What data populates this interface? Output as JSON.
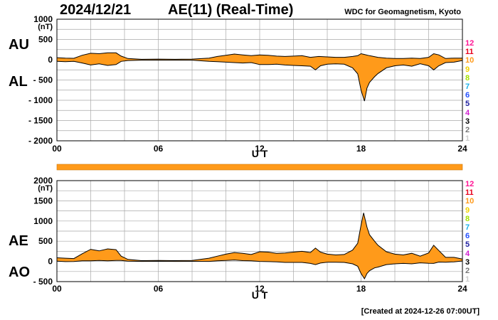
{
  "header": {
    "date": "2024/12/21",
    "index_title": "AE(11) (Real-Time)",
    "source": "WDC for Geomagnetism, Kyoto"
  },
  "footer": {
    "created": "[Created at 2024-12-26 07:00UT]"
  },
  "panels": {
    "top": {
      "label_upper": "AU",
      "label_lower": "AL"
    },
    "bottom": {
      "label_upper": "AE",
      "label_lower": "AO"
    }
  },
  "legend": {
    "items": [
      {
        "label": "12",
        "color": "#ff1493"
      },
      {
        "label": "11",
        "color": "#e8001c"
      },
      {
        "label": "10",
        "color": "#ff9a1a"
      },
      {
        "label": "9",
        "color": "#f2d200"
      },
      {
        "label": "8",
        "color": "#a6e000"
      },
      {
        "label": "7",
        "color": "#1ab0e8"
      },
      {
        "label": "6",
        "color": "#2450ff"
      },
      {
        "label": "5",
        "color": "#2020a0"
      },
      {
        "label": "4",
        "color": "#d020d0"
      },
      {
        "label": "3",
        "color": "#000000"
      },
      {
        "label": "2",
        "color": "#777777"
      },
      {
        "label": "1",
        "color": "#cccccc"
      }
    ]
  },
  "colors": {
    "fill": "#ff9a1a",
    "grid": "#a8a8a8",
    "line": "#000000"
  },
  "chart_data": [
    {
      "type": "area",
      "title": "AE(11) (Real-Time)",
      "xlabel": "U T",
      "ylabel": "(nT)",
      "xlim": [
        0,
        24
      ],
      "ylim": [
        -2000,
        1000
      ],
      "x_ticks": [
        "00",
        "06",
        "12",
        "18",
        "24"
      ],
      "y_ticks": [
        "1000",
        "500",
        "0",
        "- 500",
        "- 1000",
        "- 1500",
        "- 2000"
      ],
      "grid": true,
      "series": [
        {
          "name": "AU",
          "points": [
            [
              0,
              50
            ],
            [
              0.5,
              40
            ],
            [
              1,
              35
            ],
            [
              1.5,
              110
            ],
            [
              2,
              160
            ],
            [
              2.5,
              150
            ],
            [
              3,
              170
            ],
            [
              3.5,
              170
            ],
            [
              3.8,
              90
            ],
            [
              4.2,
              30
            ],
            [
              5,
              10
            ],
            [
              6,
              15
            ],
            [
              7,
              10
            ],
            [
              8,
              15
            ],
            [
              9,
              40
            ],
            [
              9.5,
              80
            ],
            [
              10,
              110
            ],
            [
              10.5,
              140
            ],
            [
              11,
              120
            ],
            [
              11.5,
              100
            ],
            [
              12,
              120
            ],
            [
              12.5,
              110
            ],
            [
              13,
              90
            ],
            [
              13.5,
              80
            ],
            [
              14,
              90
            ],
            [
              14.5,
              100
            ],
            [
              15,
              60
            ],
            [
              15.5,
              80
            ],
            [
              16,
              70
            ],
            [
              16.5,
              60
            ],
            [
              17,
              60
            ],
            [
              17.5,
              80
            ],
            [
              17.8,
              100
            ],
            [
              18,
              150
            ],
            [
              18.2,
              130
            ],
            [
              18.5,
              100
            ],
            [
              19,
              60
            ],
            [
              19.5,
              40
            ],
            [
              20,
              30
            ],
            [
              20.5,
              30
            ],
            [
              21,
              40
            ],
            [
              21.5,
              30
            ],
            [
              22,
              60
            ],
            [
              22.3,
              150
            ],
            [
              22.6,
              120
            ],
            [
              23,
              30
            ],
            [
              23.5,
              40
            ],
            [
              24,
              40
            ]
          ]
        },
        {
          "name": "AL",
          "points": [
            [
              0,
              -40
            ],
            [
              0.5,
              -50
            ],
            [
              1,
              -40
            ],
            [
              1.5,
              -80
            ],
            [
              2,
              -130
            ],
            [
              2.5,
              -100
            ],
            [
              3,
              -140
            ],
            [
              3.5,
              -120
            ],
            [
              3.8,
              -40
            ],
            [
              4.2,
              -20
            ],
            [
              5,
              -10
            ],
            [
              6,
              -10
            ],
            [
              7,
              -10
            ],
            [
              8,
              -10
            ],
            [
              9,
              -40
            ],
            [
              9.5,
              -50
            ],
            [
              10,
              -60
            ],
            [
              10.5,
              -70
            ],
            [
              11,
              -80
            ],
            [
              11.5,
              -70
            ],
            [
              12,
              -120
            ],
            [
              12.5,
              -120
            ],
            [
              13,
              -110
            ],
            [
              13.5,
              -130
            ],
            [
              14,
              -140
            ],
            [
              14.5,
              -150
            ],
            [
              15,
              -160
            ],
            [
              15.3,
              -250
            ],
            [
              15.6,
              -150
            ],
            [
              16,
              -110
            ],
            [
              16.5,
              -100
            ],
            [
              17,
              -110
            ],
            [
              17.5,
              -200
            ],
            [
              17.8,
              -350
            ],
            [
              18,
              -750
            ],
            [
              18.2,
              -1020
            ],
            [
              18.35,
              -700
            ],
            [
              18.5,
              -560
            ],
            [
              18.8,
              -420
            ],
            [
              19,
              -340
            ],
            [
              19.5,
              -200
            ],
            [
              20,
              -150
            ],
            [
              20.5,
              -130
            ],
            [
              21,
              -160
            ],
            [
              21.5,
              -100
            ],
            [
              22,
              -150
            ],
            [
              22.3,
              -250
            ],
            [
              22.6,
              -150
            ],
            [
              23,
              -70
            ],
            [
              23.5,
              -60
            ],
            [
              24,
              -20
            ]
          ]
        }
      ]
    },
    {
      "type": "area",
      "title": "AE(11) (Real-Time)",
      "xlabel": "U T",
      "ylabel": "(nT)",
      "xlim": [
        0,
        24
      ],
      "ylim": [
        -500,
        2000
      ],
      "x_ticks": [
        "00",
        "06",
        "12",
        "18",
        "24"
      ],
      "y_ticks": [
        "2000",
        "1500",
        "1000",
        "500",
        "0",
        "- 500"
      ],
      "grid": true,
      "series": [
        {
          "name": "AE",
          "points": [
            [
              0,
              90
            ],
            [
              0.5,
              80
            ],
            [
              1,
              70
            ],
            [
              1.5,
              190
            ],
            [
              2,
              300
            ],
            [
              2.5,
              260
            ],
            [
              3,
              310
            ],
            [
              3.5,
              290
            ],
            [
              3.8,
              130
            ],
            [
              4.2,
              50
            ],
            [
              5,
              20
            ],
            [
              6,
              25
            ],
            [
              7,
              20
            ],
            [
              8,
              25
            ],
            [
              9,
              80
            ],
            [
              9.5,
              130
            ],
            [
              10,
              180
            ],
            [
              10.5,
              220
            ],
            [
              11,
              200
            ],
            [
              11.5,
              170
            ],
            [
              12,
              240
            ],
            [
              12.5,
              230
            ],
            [
              13,
              200
            ],
            [
              13.5,
              210
            ],
            [
              14,
              230
            ],
            [
              14.5,
              250
            ],
            [
              15,
              220
            ],
            [
              15.3,
              330
            ],
            [
              15.6,
              230
            ],
            [
              16,
              180
            ],
            [
              16.5,
              160
            ],
            [
              17,
              170
            ],
            [
              17.5,
              280
            ],
            [
              17.8,
              450
            ],
            [
              18,
              900
            ],
            [
              18.15,
              1200
            ],
            [
              18.35,
              850
            ],
            [
              18.5,
              660
            ],
            [
              18.8,
              500
            ],
            [
              19,
              400
            ],
            [
              19.5,
              240
            ],
            [
              20,
              180
            ],
            [
              20.5,
              160
            ],
            [
              21,
              200
            ],
            [
              21.5,
              130
            ],
            [
              22,
              210
            ],
            [
              22.3,
              400
            ],
            [
              22.6,
              270
            ],
            [
              23,
              100
            ],
            [
              23.5,
              100
            ],
            [
              24,
              60
            ]
          ]
        },
        {
          "name": "AO",
          "points": [
            [
              0,
              5
            ],
            [
              0.5,
              -5
            ],
            [
              1,
              -3
            ],
            [
              1.5,
              15
            ],
            [
              2,
              15
            ],
            [
              2.5,
              25
            ],
            [
              3,
              15
            ],
            [
              3.5,
              25
            ],
            [
              3.8,
              25
            ],
            [
              4.2,
              5
            ],
            [
              5,
              0
            ],
            [
              6,
              2
            ],
            [
              7,
              0
            ],
            [
              8,
              2
            ],
            [
              9,
              0
            ],
            [
              9.5,
              15
            ],
            [
              10,
              25
            ],
            [
              10.5,
              35
            ],
            [
              11,
              20
            ],
            [
              11.5,
              15
            ],
            [
              12,
              0
            ],
            [
              12.5,
              -5
            ],
            [
              13,
              -10
            ],
            [
              13.5,
              -25
            ],
            [
              14,
              -25
            ],
            [
              14.5,
              -25
            ],
            [
              15,
              -50
            ],
            [
              15.3,
              -80
            ],
            [
              15.6,
              -40
            ],
            [
              16,
              -20
            ],
            [
              16.5,
              -20
            ],
            [
              17,
              -25
            ],
            [
              17.5,
              -60
            ],
            [
              17.8,
              -120
            ],
            [
              18,
              -300
            ],
            [
              18.2,
              -430
            ],
            [
              18.35,
              -300
            ],
            [
              18.5,
              -230
            ],
            [
              18.8,
              -160
            ],
            [
              19,
              -140
            ],
            [
              19.5,
              -80
            ],
            [
              20,
              -60
            ],
            [
              20.5,
              -50
            ],
            [
              21,
              -60
            ],
            [
              21.5,
              -35
            ],
            [
              22,
              -45
            ],
            [
              22.3,
              -50
            ],
            [
              22.6,
              -15
            ],
            [
              23,
              -20
            ],
            [
              23.5,
              -10
            ],
            [
              24,
              10
            ]
          ]
        }
      ]
    }
  ]
}
